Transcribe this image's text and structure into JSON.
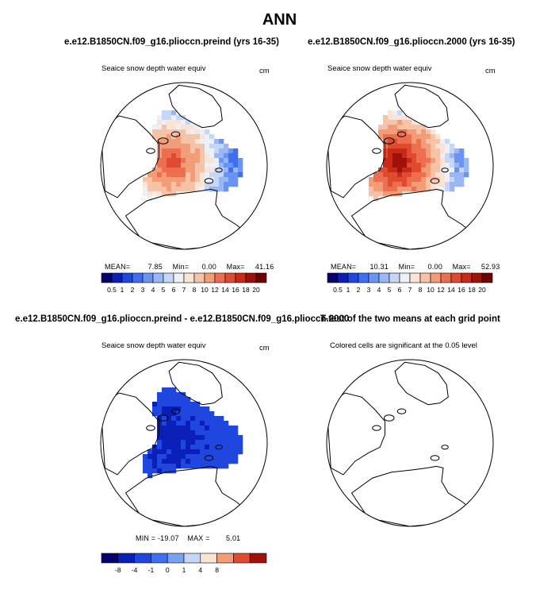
{
  "page_title": "ANN",
  "chart_data": [
    {
      "type": "heatmap",
      "projection": "north polar stereographic",
      "title": "e.e12.B1850CN.f09_g16.plioccn.preind (yrs 16-35)",
      "variable": "Seaice snow depth water equiv",
      "units": "cm",
      "stats": {
        "mean_label": "MEAN=",
        "mean": "7.85",
        "min_label": "Min=",
        "min": "0.00",
        "max_label": "Max=",
        "max": "41.16"
      },
      "colorbar": {
        "levels": [
          "0.5",
          "1",
          "2",
          "3",
          "4",
          "5",
          "6",
          "7",
          "8",
          "10",
          "12",
          "14",
          "16",
          "18",
          "20"
        ],
        "colors": [
          "#05006e",
          "#0a1fb8",
          "#1f47e0",
          "#3f6ef0",
          "#6b94f2",
          "#9ab7f5",
          "#c6d6f7",
          "#eef0f8",
          "#fbe3d6",
          "#f7c3a8",
          "#f29c78",
          "#ec7050",
          "#e04a30",
          "#c82a18",
          "#a01208",
          "#6e0000"
        ]
      }
    },
    {
      "type": "heatmap",
      "projection": "north polar stereographic",
      "title": "e.e12.B1850CN.f09_g16.plioccn.2000 (yrs 16-35)",
      "variable": "Seaice snow depth water equiv",
      "units": "cm",
      "stats": {
        "mean_label": "MEAN=",
        "mean": "10.31",
        "min_label": "Min=",
        "min": "0.00",
        "max_label": "Max=",
        "max": "52.93"
      },
      "colorbar": {
        "levels": [
          "0.5",
          "1",
          "2",
          "3",
          "4",
          "5",
          "6",
          "7",
          "8",
          "10",
          "12",
          "14",
          "16",
          "18",
          "20"
        ],
        "colors": [
          "#05006e",
          "#0a1fb8",
          "#1f47e0",
          "#3f6ef0",
          "#6b94f2",
          "#9ab7f5",
          "#c6d6f7",
          "#eef0f8",
          "#fbe3d6",
          "#f7c3a8",
          "#f29c78",
          "#ec7050",
          "#e04a30",
          "#c82a18",
          "#a01208",
          "#6e0000"
        ]
      }
    },
    {
      "type": "heatmap",
      "projection": "north polar stereographic",
      "title": "e.e12.B1850CN.f09_g16.plioccn.preind - e.e12.B1850CN.f09_g16.plioccn.2000",
      "variable": "Seaice snow depth water equiv",
      "units": "cm",
      "stats": {
        "min_label": "MIN =",
        "min": "-19.07",
        "max_label": "MAX =",
        "max": "5.01"
      },
      "colorbar": {
        "levels": [
          "-8",
          "-4",
          "-1",
          "0",
          "1",
          "4",
          "8"
        ],
        "colors": [
          "#05006e",
          "#0a1fb8",
          "#1f47e0",
          "#3f6ef0",
          "#7aa0f2",
          "#c6d6f7",
          "#fbe3d6",
          "#f29c78",
          "#e04a30",
          "#a01208"
        ]
      }
    },
    {
      "type": "heatmap",
      "projection": "north polar stereographic",
      "title": "T-test of the two means at each grid point",
      "variable": "Colored cells are significant at the 0.05 level",
      "units": ""
    }
  ]
}
